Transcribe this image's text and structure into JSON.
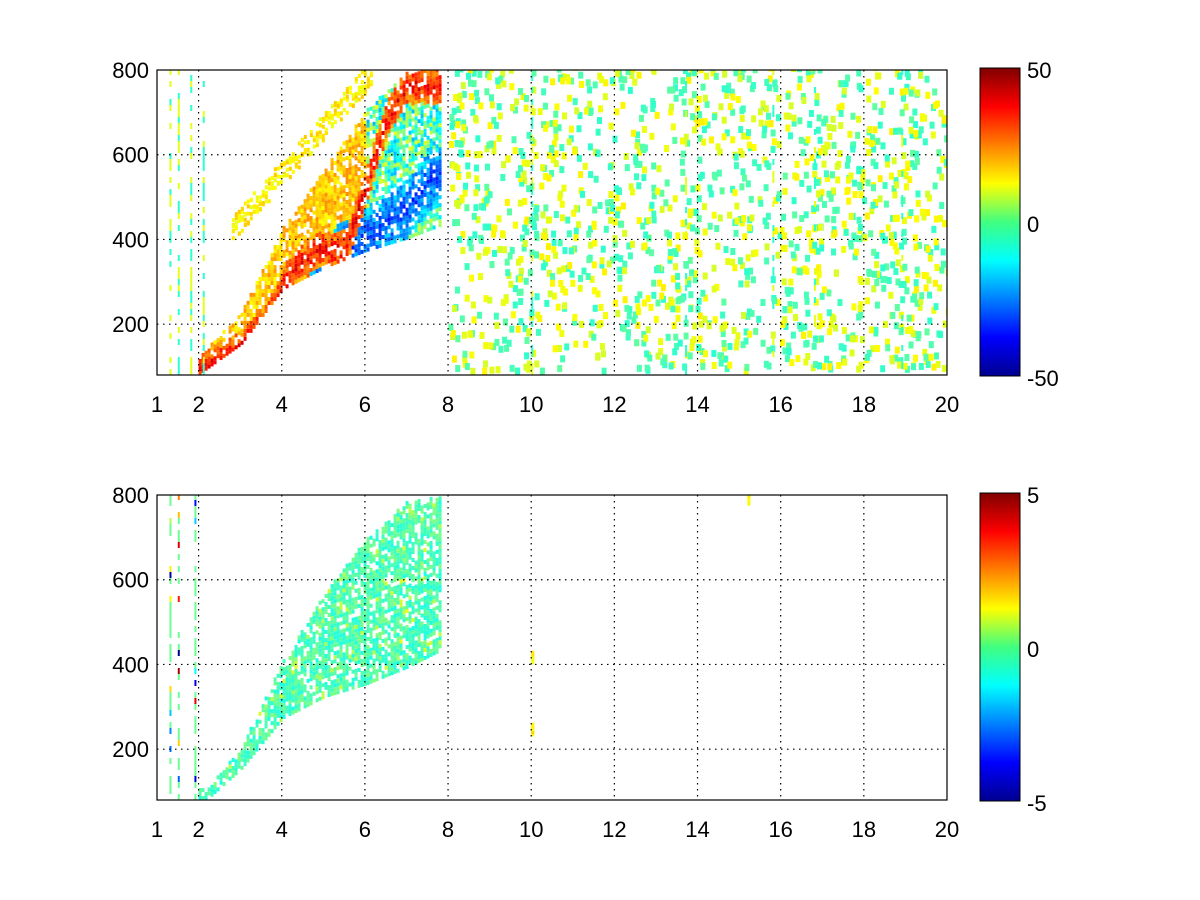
{
  "chart_data": [
    {
      "type": "heatmap",
      "title": "",
      "xlabel": "",
      "ylabel": "",
      "xlim": [
        1,
        20
      ],
      "ylim": [
        80,
        800
      ],
      "x_ticks": [
        1,
        2,
        4,
        6,
        8,
        10,
        12,
        14,
        16,
        18,
        20
      ],
      "y_ticks": [
        200,
        400,
        600,
        800
      ],
      "grid": true,
      "colormap": "jet",
      "colorbar": {
        "min": -50,
        "max": 50,
        "ticks": [
          50,
          0,
          -50
        ]
      },
      "features": {
        "dense_band": {
          "lower_edge": [
            [
              2,
              80
            ],
            [
              3,
              150
            ],
            [
              4,
              280
            ],
            [
              5,
              330
            ],
            [
              6,
              370
            ],
            [
              7,
              400
            ],
            [
              7.8,
              430
            ]
          ],
          "upper_edge": [
            [
              2,
              120
            ],
            [
              3,
              220
            ],
            [
              4,
              420
            ],
            [
              5,
              560
            ],
            [
              6,
              700
            ],
            [
              7,
              790
            ],
            [
              7.8,
              800
            ]
          ]
        },
        "positive_ridge": [
          [
            2,
            85
          ],
          [
            3,
            140
          ],
          [
            3.6,
            200
          ],
          [
            4.2,
            320
          ],
          [
            4.8,
            370
          ],
          [
            5.5,
            370
          ],
          [
            6,
            520
          ],
          [
            6.5,
            680
          ],
          [
            7,
            760
          ]
        ],
        "negative_ridge": [
          [
            4.3,
            200
          ],
          [
            5,
            340
          ],
          [
            6,
            400
          ],
          [
            7,
            470
          ],
          [
            7.6,
            540
          ]
        ],
        "sparse_region_x": [
          8,
          20
        ],
        "vertical_streaks_x": [
          1.3,
          1.5,
          1.8,
          2.1,
          10,
          13.7,
          15.8,
          16.8,
          18.9
        ]
      }
    },
    {
      "type": "heatmap",
      "title": "",
      "xlabel": "",
      "ylabel": "",
      "xlim": [
        1,
        20
      ],
      "ylim": [
        80,
        800
      ],
      "x_ticks": [
        1,
        2,
        4,
        6,
        8,
        10,
        12,
        14,
        16,
        18,
        20
      ],
      "y_ticks": [
        200,
        400,
        600,
        800
      ],
      "grid": true,
      "colormap": "jet",
      "colorbar": {
        "min": -5,
        "max": 5,
        "ticks": [
          5,
          0,
          -5
        ]
      },
      "features": {
        "dense_band": {
          "lower_edge": [
            [
              2.2,
              80
            ],
            [
              3,
              150
            ],
            [
              4,
              270
            ],
            [
              5,
              320
            ],
            [
              6,
              350
            ],
            [
              7,
              390
            ],
            [
              7.8,
              430
            ]
          ],
          "upper_edge": [
            [
              2.2,
              100
            ],
            [
              3,
              200
            ],
            [
              4,
              400
            ],
            [
              5,
              560
            ],
            [
              6,
              690
            ],
            [
              7,
              780
            ],
            [
              7.8,
              790
            ]
          ]
        },
        "isolated_points": [
          [
            10,
            230
          ],
          [
            15.2,
            775
          ],
          [
            10,
            400
          ]
        ],
        "vertical_streaks_x": [
          1.3,
          1.5,
          1.9
        ]
      }
    }
  ]
}
